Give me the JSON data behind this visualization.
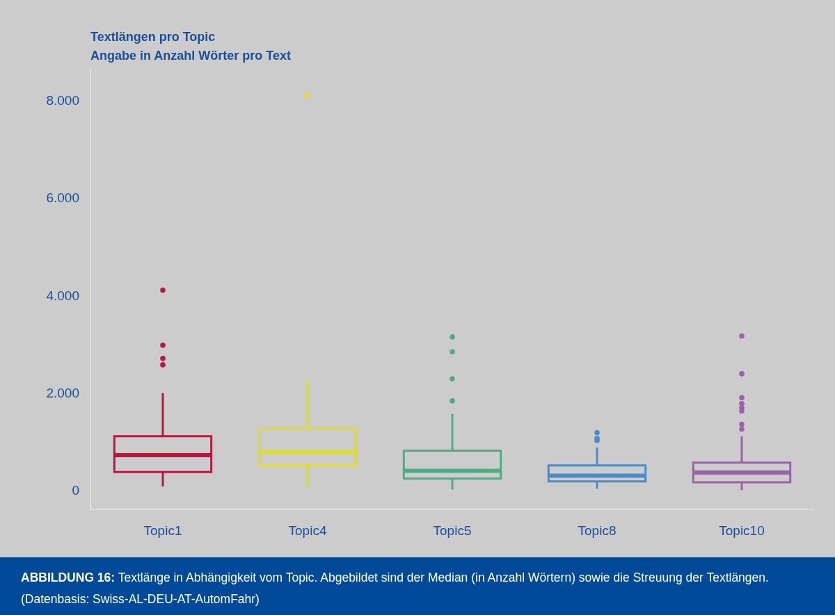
{
  "chart_data": {
    "type": "box",
    "title": "Textlängen pro Topic",
    "subtitle": "Angabe in Anzahl Wörter pro Text",
    "categories": [
      "Topic1",
      "Topic4",
      "Topic5",
      "Topic8",
      "Topic10"
    ],
    "colors": [
      "#b5193f",
      "#dede30",
      "#4caf84",
      "#4a8cc8",
      "#9b62aa"
    ],
    "boxes": [
      {
        "low": 100,
        "q1": 395,
        "median": 740,
        "q3": 1130,
        "high": 2015,
        "outliers": [
          2595,
          2725,
          2995,
          4125
        ]
      },
      {
        "low": 85,
        "q1": 530,
        "median": 800,
        "q3": 1285,
        "high": 2285,
        "outliers": [
          8115
        ]
      },
      {
        "low": 35,
        "q1": 260,
        "median": 420,
        "q3": 835,
        "high": 1585,
        "outliers": [
          1855,
          2310,
          2860,
          3165
        ]
      },
      {
        "low": 55,
        "q1": 205,
        "median": 320,
        "q3": 530,
        "high": 900,
        "outliers": [
          1040,
          1085,
          1205
        ]
      },
      {
        "low": 25,
        "q1": 185,
        "median": 385,
        "q3": 590,
        "high": 1125,
        "outliers": [
          1275,
          1375,
          1645,
          1715,
          1800,
          1920,
          2410,
          3185
        ]
      }
    ],
    "ylim": [
      -370,
      8650
    ],
    "yticks": [
      {
        "value": 0,
        "label": "0"
      },
      {
        "value": 2000,
        "label": "2.000"
      },
      {
        "value": 4000,
        "label": "4.000"
      },
      {
        "value": 6000,
        "label": "6.000"
      },
      {
        "value": 8000,
        "label": "8.000"
      }
    ],
    "grid": false,
    "legend": false,
    "marker": "circle",
    "annotations": [
      "ABBILDUNG 16: Textlänge in Abhängigkeit vom Topic. Abgebildet sind der Median (in Anzahl Wörtern) sowie die Streuung der Textlängen. (Datenbasis: Swiss-AL-DEU-AT-AutomFahr)"
    ]
  }
}
